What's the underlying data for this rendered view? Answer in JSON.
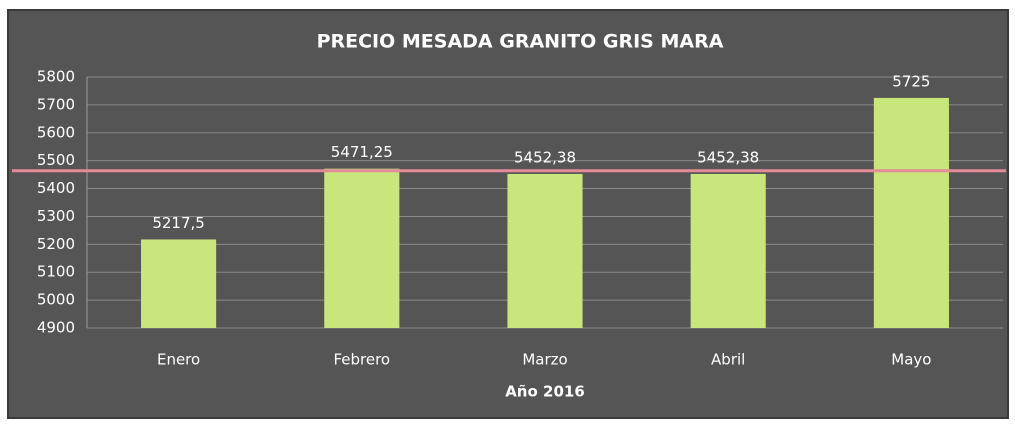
{
  "chart_data": {
    "type": "bar",
    "title": "PRECIO MESADA GRANITO GRIS MARA",
    "x_label": "Año 2016",
    "categories": [
      "Enero",
      "Febrero",
      "Marzo",
      "Abril",
      "Mayo"
    ],
    "values": [
      5217.5,
      5471.25,
      5452.38,
      5452.38,
      5725
    ],
    "value_labels": [
      "5217,5",
      "5471,25",
      "5452,38",
      "5452,38",
      "5725"
    ],
    "color": "#c8e67c",
    "ylim": [
      4900,
      5800
    ],
    "yticks": [
      4900,
      5000,
      5100,
      5200,
      5300,
      5400,
      5500,
      5600,
      5700,
      5800
    ],
    "grid": true,
    "reference_line": {
      "value": 5463.7,
      "color": "#e58a98"
    }
  }
}
